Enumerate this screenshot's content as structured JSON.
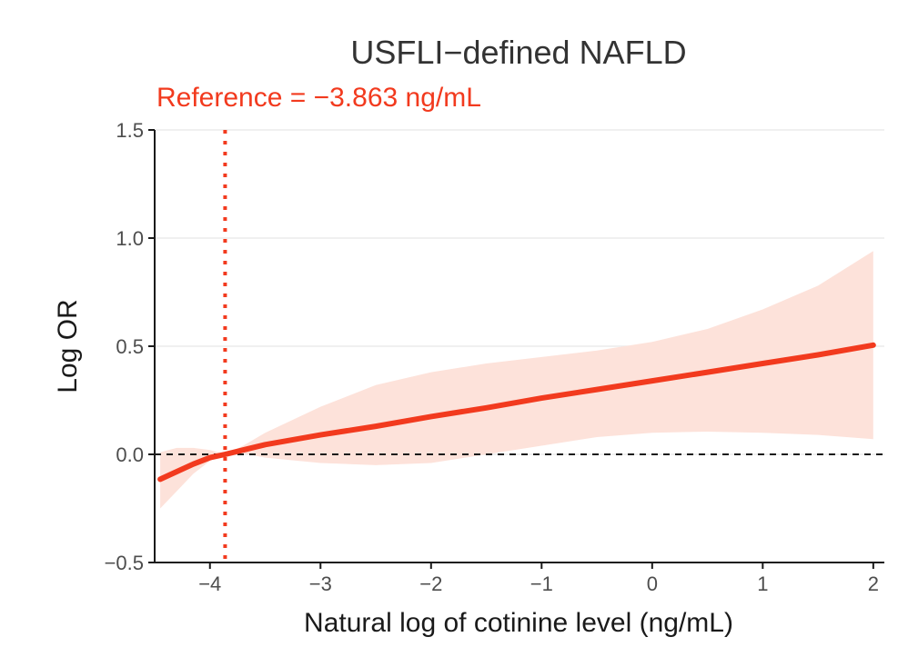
{
  "chart_data": {
    "type": "line",
    "title": "USFLI−defined NAFLD",
    "reference_label": "Reference = −3.863 ng/mL",
    "reference_x": -3.863,
    "xlabel": "Natural log of cotinine level (ng/mL)",
    "ylabel": "Log OR",
    "xlim": [
      -4.5,
      2.1
    ],
    "ylim": [
      -0.5,
      1.5
    ],
    "x_ticks": [
      -4,
      -3,
      -2,
      -1,
      0,
      1,
      2
    ],
    "x_tick_labels": [
      "−4",
      "−3",
      "−2",
      "−1",
      "0",
      "1",
      "2"
    ],
    "y_ticks": [
      -0.5,
      0.0,
      0.5,
      1.0,
      1.5
    ],
    "y_tick_labels": [
      "−0.5",
      "0.0",
      "0.5",
      "1.0",
      "1.5"
    ],
    "gridlines_y": true,
    "zero_line": true,
    "series": [
      {
        "name": "Log OR estimate",
        "x": [
          -4.45,
          -4.3,
          -4.15,
          -4.0,
          -3.863,
          -3.7,
          -3.5,
          -3.0,
          -2.5,
          -2.0,
          -1.5,
          -1.0,
          -0.5,
          0.0,
          0.5,
          1.0,
          1.5,
          2.0
        ],
        "values": [
          -0.115,
          -0.08,
          -0.045,
          -0.015,
          0.0,
          0.02,
          0.045,
          0.09,
          0.13,
          0.175,
          0.215,
          0.26,
          0.3,
          0.34,
          0.38,
          0.42,
          0.46,
          0.505
        ],
        "ci_lower": [
          -0.25,
          -0.17,
          -0.09,
          -0.03,
          0.0,
          0.005,
          -0.015,
          -0.04,
          -0.05,
          -0.04,
          0.0,
          0.04,
          0.08,
          0.1,
          0.105,
          0.1,
          0.09,
          0.07
        ],
        "ci_upper": [
          0.01,
          0.03,
          0.03,
          0.02,
          0.0,
          0.04,
          0.1,
          0.22,
          0.32,
          0.38,
          0.42,
          0.45,
          0.48,
          0.52,
          0.58,
          0.67,
          0.78,
          0.94
        ]
      }
    ],
    "colors": {
      "line": "#f23a1e",
      "ribbon": "#fde2da",
      "reference": "#f23a1e",
      "zero_line": "#1a1a1a",
      "grid": "#ebebeb",
      "axis": "#1a1a1a"
    }
  }
}
